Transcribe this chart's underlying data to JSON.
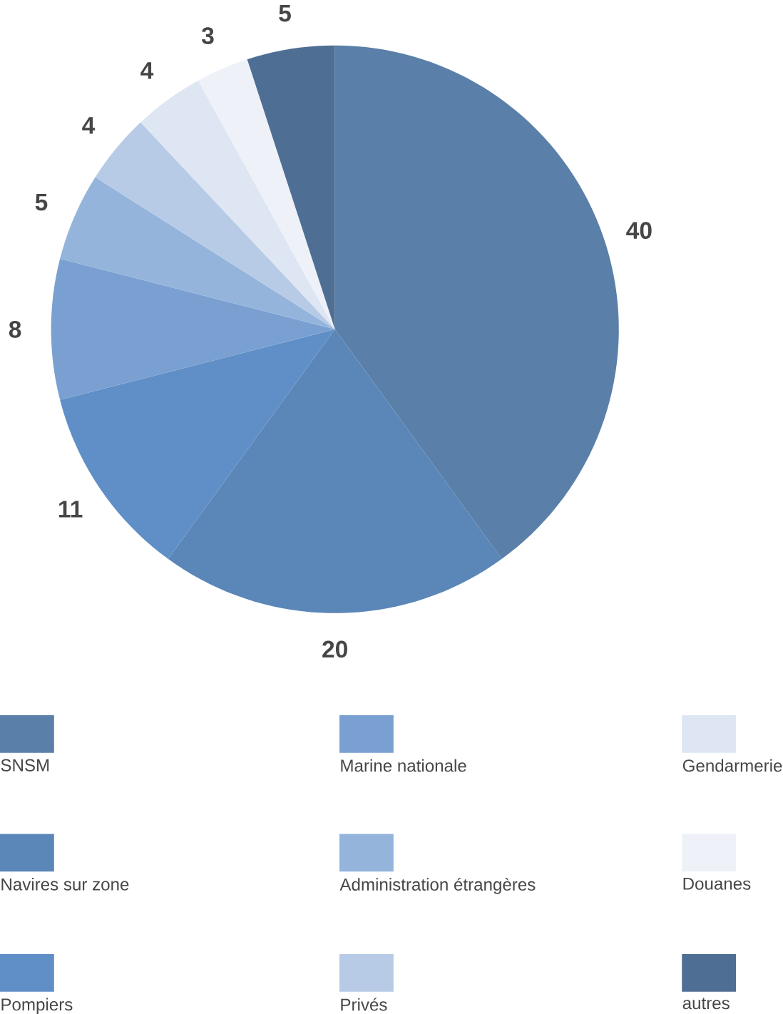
{
  "chart_data": {
    "type": "pie",
    "categories": [
      "SNSM",
      "Navires sur zone",
      "Pompiers",
      "Marine nationale",
      "Administration étrangères",
      "Privés",
      "Gendarmerie",
      "Douanes",
      "autres"
    ],
    "values": [
      40,
      20,
      11,
      8,
      5,
      4,
      4,
      3,
      5
    ],
    "colors": [
      "#5a7fa8",
      "#5a86b8",
      "#5f8fc6",
      "#7aa0d2",
      "#94b4dc",
      "#b7cbe6",
      "#dde6f2",
      "#eef2f8",
      "#4f6e94"
    ],
    "data_labels": true,
    "legend": "bottom"
  }
}
